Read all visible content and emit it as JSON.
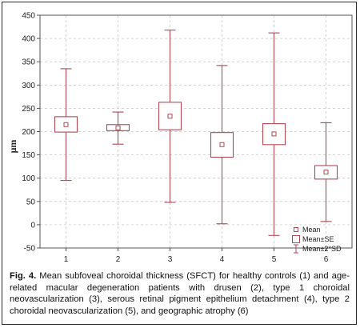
{
  "caption": {
    "label": "Fig. 4.",
    "text": " Mean subfoveal choroidal thickness (SFCT) for healthy controls (1) and age-related macular degeneration patients with drusen (2), type 1 choroidal neovascularization (3), serous retinal pigment epithelium detachment (4), type 2 choroidal neovascularization (5), and geographic atrophy (6)"
  },
  "colors": {
    "box": "#b04a55",
    "axis": "#555555",
    "grid": "#c8c8c8"
  },
  "chart_data": {
    "type": "boxplot",
    "title": "",
    "xlabel": "",
    "ylabel": "μm",
    "ylim": [
      -50,
      450
    ],
    "yticks": [
      -50,
      0,
      50,
      100,
      150,
      200,
      250,
      300,
      350,
      400,
      450
    ],
    "categories": [
      "1",
      "2",
      "3",
      "4",
      "5",
      "6"
    ],
    "grid": "dashed",
    "legend": {
      "placement": "bottom-right",
      "entries": [
        {
          "marker": "point",
          "label": "Mean"
        },
        {
          "marker": "box",
          "label": "Mean±SE"
        },
        {
          "marker": "whisker",
          "label": "Mean±2*SD"
        }
      ]
    },
    "series": [
      {
        "category": "1",
        "mean": 215,
        "se_low": 199,
        "se_high": 232,
        "sd_low": 95,
        "sd_high": 335
      },
      {
        "category": "2",
        "mean": 208,
        "se_low": 202,
        "se_high": 215,
        "sd_low": 173,
        "sd_high": 242
      },
      {
        "category": "3",
        "mean": 233,
        "se_low": 204,
        "se_high": 263,
        "sd_low": 48,
        "sd_high": 418
      },
      {
        "category": "4",
        "mean": 172,
        "se_low": 145,
        "se_high": 198,
        "sd_low": 2,
        "sd_high": 342
      },
      {
        "category": "5",
        "mean": 195,
        "se_low": 172,
        "se_high": 217,
        "sd_low": -23,
        "sd_high": 412
      },
      {
        "category": "6",
        "mean": 113,
        "se_low": 98,
        "se_high": 127,
        "sd_low": 7,
        "sd_high": 219
      }
    ]
  }
}
